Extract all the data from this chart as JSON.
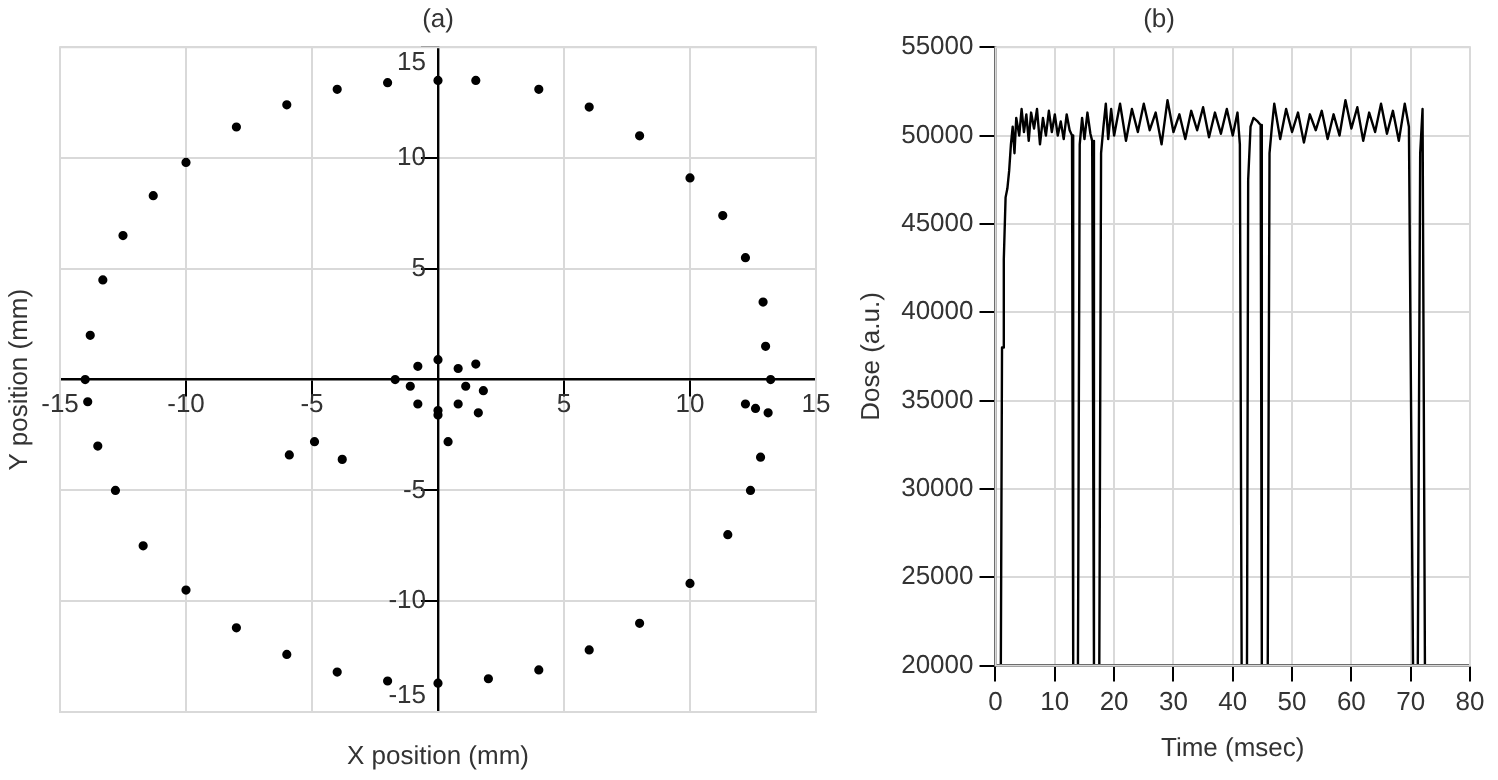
{
  "chart_data": [
    {
      "type": "scatter",
      "title": "(a)",
      "xlabel": "X position (mm)",
      "ylabel": "Y position (mm)",
      "color": "#000000",
      "marker": "circle",
      "grid": true,
      "xlim": [
        -15,
        15
      ],
      "ylim": [
        -15,
        15
      ],
      "xticks": [
        -15,
        -10,
        -5,
        5,
        10,
        15
      ],
      "yticks": [
        -15,
        -10,
        -5,
        5,
        10,
        15
      ],
      "x": [
        1.5,
        4,
        6,
        8,
        10,
        11.3,
        12.2,
        12.9,
        13.0,
        13.2,
        13.1,
        12.8,
        12.4,
        11.5,
        10,
        8,
        6,
        4,
        2,
        0,
        -2,
        -4,
        -6,
        -8,
        -10,
        -11.7,
        -12.8,
        -13.5,
        -13.9,
        -14,
        -13.8,
        -13.3,
        -12.5,
        -11.3,
        -10,
        -8,
        -6,
        -4,
        -2,
        0,
        0,
        0.8,
        1.1,
        0.8,
        0,
        -0.8,
        -1.1,
        -0.8,
        1.5,
        1.8,
        1.6,
        -1.7,
        0,
        -5.9,
        -4.9,
        -3.8,
        0.4,
        12.2,
        12.6
      ],
      "values": [
        13.5,
        13.1,
        12.3,
        11.0,
        9.1,
        7.4,
        5.5,
        3.5,
        1.5,
        0,
        -1.5,
        -3.5,
        -5,
        -7,
        -9.2,
        -11,
        -12.2,
        -13.1,
        -13.5,
        -13.7,
        -13.6,
        -13.2,
        -12.4,
        -11.2,
        -9.5,
        -7.5,
        -5,
        -3,
        -1,
        0,
        2,
        4.5,
        6.5,
        8.3,
        9.8,
        11.4,
        12.4,
        13.1,
        13.4,
        13.5,
        0.9,
        0.5,
        -0.3,
        -1.1,
        -1.4,
        -1.1,
        -0.3,
        0.6,
        0.7,
        -0.5,
        -1.5,
        0,
        -1.6,
        -3.4,
        -2.8,
        -3.6,
        -2.8,
        -1.1,
        -1.3
      ]
    },
    {
      "type": "line",
      "title": "(b)",
      "xlabel": "Time (msec)",
      "ylabel": "Dose (a.u.)",
      "color": "#000000",
      "grid": true,
      "xlim": [
        0,
        80
      ],
      "ylim": [
        20000,
        55000
      ],
      "xticks": [
        0,
        10,
        20,
        30,
        40,
        50,
        60,
        70,
        80
      ],
      "yticks": [
        20000,
        25000,
        30000,
        35000,
        40000,
        45000,
        50000,
        55000
      ],
      "x": [
        0.5,
        0.9,
        1.1,
        1.4,
        1.7,
        2.0,
        2.3,
        2.6,
        2.9,
        3.2,
        3.5,
        4.0,
        4.4,
        4.8,
        5.2,
        5.6,
        6.0,
        6.5,
        7.0,
        7.5,
        8.0,
        8.5,
        9.0,
        9.5,
        10.0,
        10.5,
        11.0,
        11.5,
        12.0,
        12.5,
        12.9,
        13.1,
        13.9,
        14.2,
        14.6,
        15.0,
        15.5,
        16.0,
        16.3,
        16.6,
        17.5,
        17.8,
        18.2,
        18.6,
        19.0,
        19.5,
        20,
        21,
        22,
        23,
        24,
        25,
        26,
        27,
        28,
        29,
        30,
        31,
        32,
        33,
        34,
        35,
        36,
        37,
        38,
        39,
        40,
        40.8,
        41.2,
        41.5,
        42.4,
        42.6,
        43,
        43.5,
        44.2,
        44.7,
        44.9,
        45.9,
        46.2,
        46.6,
        47,
        48,
        49,
        50,
        51,
        52,
        53,
        54,
        55,
        56,
        57,
        58,
        59,
        60,
        61,
        62,
        63,
        64,
        65,
        66,
        67,
        68,
        69,
        69.7,
        70.4,
        71.2,
        71.6,
        72.0,
        72.4
      ],
      "values": [
        20000,
        20000,
        38000,
        43000,
        46500,
        47000,
        48000,
        49500,
        50500,
        49000,
        51000,
        50000,
        51500,
        50200,
        51200,
        49700,
        51300,
        50400,
        51500,
        49500,
        51000,
        50000,
        51400,
        50200,
        51200,
        50000,
        50800,
        49800,
        51200,
        50300,
        50000,
        20000,
        20000,
        49500,
        51000,
        49800,
        51300,
        50100,
        49700,
        20000,
        20000,
        49000,
        50500,
        51800,
        49800,
        51500,
        50000,
        51800,
        49700,
        51500,
        50200,
        51800,
        50300,
        51300,
        49500,
        52000,
        50200,
        51200,
        49800,
        51400,
        50300,
        51600,
        49900,
        51300,
        50100,
        51500,
        50000,
        51300,
        49500,
        20000,
        20000,
        47500,
        50500,
        51000,
        50800,
        50600,
        20000,
        20000,
        49000,
        50500,
        51800,
        49800,
        51500,
        50200,
        51300,
        49600,
        51200,
        50300,
        51400,
        49800,
        51200,
        50000,
        52000,
        50400,
        51600,
        49700,
        51300,
        50200,
        51800,
        50100,
        51400,
        49700,
        51800,
        50500,
        20000,
        20000,
        49000,
        51500,
        20000
      ]
    }
  ]
}
